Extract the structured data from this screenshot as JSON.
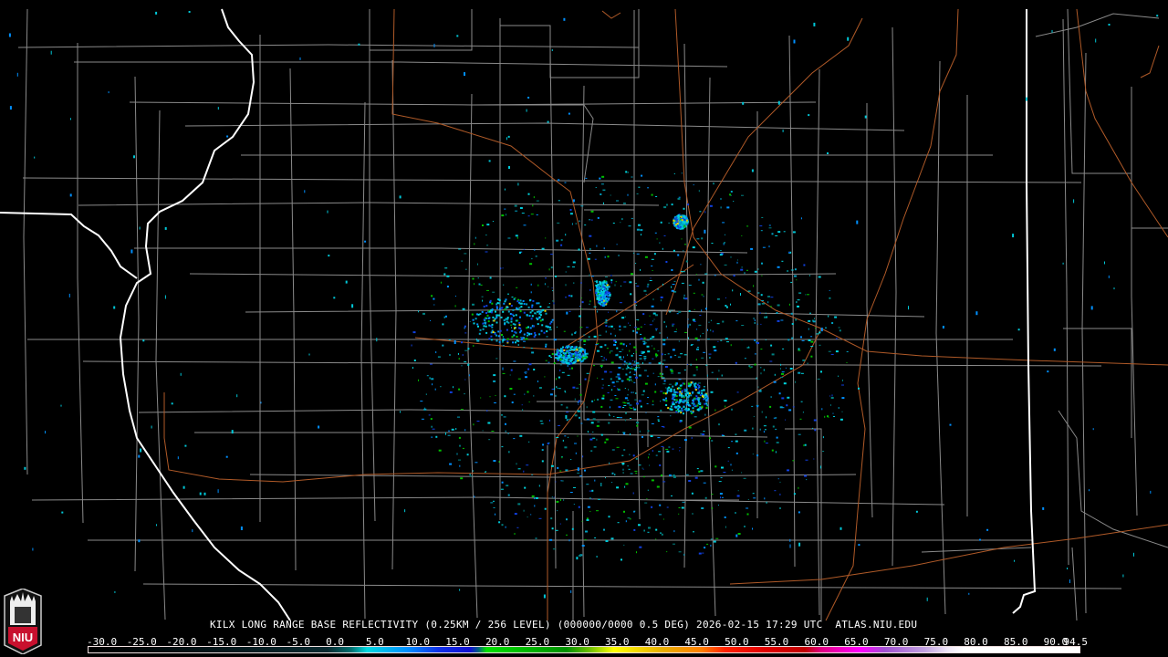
{
  "product": {
    "caption": "KILX LONG RANGE BASE REFLECTIVITY (0.25KM / 256 LEVEL) (000000/0000 0.5 DEG) 2026-02-15 17:29 UTC  ATLAS.NIU.EDU",
    "radar_site": "KILX",
    "date": "2026-02-15",
    "time": "17:29 UTC",
    "elevation": "0.5 DEG"
  },
  "logo": {
    "text": "NIU"
  },
  "legend": {
    "min": -30.0,
    "max": 94.5,
    "labels": [
      "-30.0",
      "-25.0",
      "-20.0",
      "-15.0",
      "-10.0",
      "-5.0",
      "0.0",
      "5.0",
      "10.0",
      "15.0",
      "20.0",
      "25.0",
      "30.0",
      "35.0",
      "40.0",
      "45.0",
      "50.0",
      "55.0",
      "60.0",
      "65.0",
      "70.0",
      "75.0",
      "80.0",
      "85.0",
      "90.0",
      "94.5"
    ],
    "color_stops": [
      {
        "v": -30,
        "c": "#000000"
      },
      {
        "v": 0,
        "c": "#0a2a30"
      },
      {
        "v": 3,
        "c": "#007070"
      },
      {
        "v": 5,
        "c": "#00d8e0"
      },
      {
        "v": 10,
        "c": "#0090ff"
      },
      {
        "v": 14,
        "c": "#1030e8"
      },
      {
        "v": 18,
        "c": "#1010d0"
      },
      {
        "v": 19,
        "c": "#006080"
      },
      {
        "v": 20,
        "c": "#00e000"
      },
      {
        "v": 30,
        "c": "#009000"
      },
      {
        "v": 33,
        "c": "#70c000"
      },
      {
        "v": 36,
        "c": "#ffff00"
      },
      {
        "v": 42,
        "c": "#e8b000"
      },
      {
        "v": 47,
        "c": "#ff8000"
      },
      {
        "v": 50,
        "c": "#ff2000"
      },
      {
        "v": 55,
        "c": "#e00000"
      },
      {
        "v": 60,
        "c": "#c00000"
      },
      {
        "v": 62,
        "c": "#e00080"
      },
      {
        "v": 67,
        "c": "#ff00ff"
      },
      {
        "v": 70,
        "c": "#a050d0"
      },
      {
        "v": 75,
        "c": "#c0a0e0"
      },
      {
        "v": 78,
        "c": "#f0e8f8"
      },
      {
        "v": 80,
        "c": "#ffffff"
      },
      {
        "v": 94.5,
        "c": "#ffffff"
      }
    ]
  },
  "map_colors": {
    "state_border": "#ffffff",
    "county_border": "#8a8a8a",
    "highway": "#b05a28",
    "background": "#000000"
  }
}
